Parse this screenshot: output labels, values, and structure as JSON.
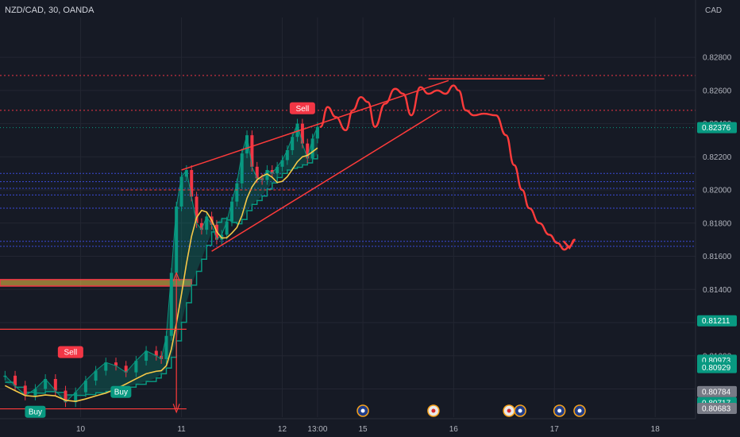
{
  "header": {
    "symbol_title": "NZD/CAD, 30, OANDA"
  },
  "chart_data": {
    "type": "line",
    "title": "NZD/CAD, 30, OANDA",
    "currency_label": "CAD",
    "y_ticks": [
      "0.82800",
      "0.82600",
      "0.82400",
      "0.82200",
      "0.82000",
      "0.81800",
      "0.81600",
      "0.81400",
      "0.81200",
      "0.81000",
      "0.80800"
    ],
    "y_tick_values": [
      0.828,
      0.826,
      0.824,
      0.822,
      0.82,
      0.818,
      0.816,
      0.814,
      0.812,
      0.81,
      0.808
    ],
    "ylim": [
      0.8063,
      0.8304
    ],
    "x_ticks": [
      "10",
      "11",
      "12",
      "13:00",
      "15",
      "16",
      "17",
      "18"
    ],
    "x_tick_values": [
      3,
      13,
      23,
      26.5,
      31,
      40,
      50,
      60
    ],
    "xlim": [
      -5,
      64
    ],
    "series": [
      {
        "values": [
          0.8088,
          0.8082,
          0.8076,
          0.808,
          0.8086,
          0.8079,
          0.8072,
          0.8078,
          0.8085,
          0.8091,
          0.8096,
          0.8094,
          0.809,
          0.8097,
          0.8103,
          0.81,
          0.8098,
          0.8112,
          0.815,
          0.819,
          0.8208,
          0.8212,
          0.8196,
          0.818,
          0.8176,
          0.8184,
          0.8179,
          0.817,
          0.8173,
          0.8181,
          0.8193,
          0.8204,
          0.8222,
          0.8233,
          0.8214,
          0.8207,
          0.8206,
          0.8212,
          0.821,
          0.8214,
          0.8218,
          0.8224,
          0.8232,
          0.824,
          0.8228,
          0.8219,
          0.8231,
          0.8238
        ],
        "x": [
          -4.5,
          -3.5,
          -2.5,
          -1.5,
          -0.5,
          0.5,
          1.5,
          2.5,
          3.5,
          4.5,
          5.5,
          6.5,
          7.5,
          8.5,
          9.5,
          10.5,
          11,
          11.5,
          12,
          12.5,
          13,
          13.5,
          14,
          14.5,
          15,
          15.5,
          16,
          16.5,
          17,
          17.5,
          18,
          18.5,
          19,
          19.5,
          20,
          20.5,
          21,
          21.5,
          22,
          22.5,
          23,
          23.5,
          24,
          24.5,
          25,
          25.5,
          26,
          26.5
        ]
      }
    ],
    "levels": {
      "red_dotted": [
        0.8269,
        0.8248
      ],
      "blue_dotted": [
        0.821,
        0.8205,
        0.8201,
        0.8197,
        0.8189,
        0.8169,
        0.8166
      ],
      "support_zone": [
        0.8143,
        0.8145
      ]
    },
    "price_tags": [
      {
        "label": "0.82376",
        "value": 0.82376,
        "color": "#089981"
      },
      {
        "label": "0.81211",
        "value": 0.81211,
        "color": "#089981"
      },
      {
        "label": "0.80973",
        "value": 0.80973,
        "color": "#089981"
      },
      {
        "label": "0.80929",
        "value": 0.80929,
        "color": "#089981"
      },
      {
        "label": "0.80784",
        "value": 0.80784,
        "color": "#787b86"
      },
      {
        "label": "0.80717",
        "value": 0.80717,
        "color": "#089981"
      },
      {
        "label": "0.80683",
        "value": 0.80683,
        "color": "#787b86"
      }
    ],
    "signals": [
      {
        "label": "Sell",
        "x": 2,
        "value": 0.8102,
        "color": "#f23645"
      },
      {
        "label": "Buy",
        "x": 7,
        "value": 0.8078,
        "color": "#089981"
      },
      {
        "label": "Buy",
        "x": -1.5,
        "value": 0.8066,
        "color": "#089981"
      },
      {
        "label": "Sell",
        "x": 25,
        "value": 0.8249,
        "color": "#f23645"
      }
    ],
    "projection": {
      "x": [
        26.8,
        27.5,
        28.3,
        29.3,
        30.0,
        30.8,
        31.5,
        32.2,
        33.2,
        34.2,
        35.0,
        35.8,
        36.7,
        37.5,
        38.4,
        39.2,
        40.0,
        40.5,
        41.2,
        42.0,
        43.0,
        44.2,
        45.2,
        46.0,
        46.8,
        47.5,
        48.5,
        49.5,
        50.3,
        51.0,
        51.5,
        52.0
      ],
      "values": [
        0.8238,
        0.825,
        0.8244,
        0.8236,
        0.8248,
        0.8256,
        0.8253,
        0.8238,
        0.8252,
        0.8261,
        0.8258,
        0.8245,
        0.8262,
        0.8258,
        0.826,
        0.8258,
        0.8263,
        0.826,
        0.8248,
        0.8245,
        0.8246,
        0.8245,
        0.8233,
        0.8215,
        0.82,
        0.8189,
        0.818,
        0.8173,
        0.8168,
        0.8164,
        0.8166,
        0.817
      ]
    },
    "colors": {
      "background": "#161a25",
      "bull": "#089981",
      "bear": "#f23645",
      "ma": "#f7c948",
      "drawing": "#ff3b3b",
      "level_blue": "#3a4bd6",
      "grid": "#232632"
    },
    "event_icons": [
      "flag-au-icon",
      "flag-ca-icon",
      "flag-ca-icon",
      "flag-au-icon",
      "flag-au-icon",
      "flag-au-icon"
    ],
    "event_x": [
      31,
      38,
      45.5,
      46.6,
      50.5,
      52.5
    ]
  }
}
